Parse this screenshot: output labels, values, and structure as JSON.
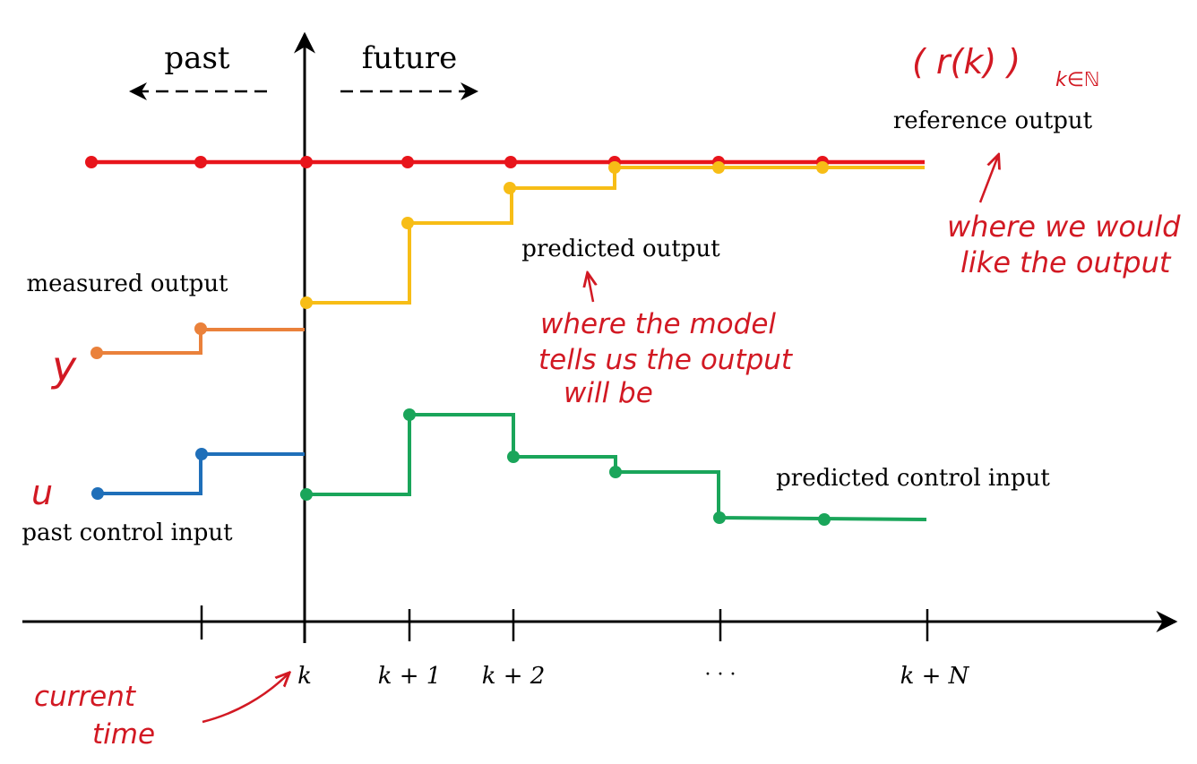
{
  "time_axis": {
    "tick_labels": [
      "k",
      "k + 1",
      "k + 2",
      "· · ·",
      "k + N"
    ],
    "direction_labels": {
      "past": "past",
      "future": "future"
    }
  },
  "labels": {
    "reference_output": "reference output",
    "predicted_output": "predicted output",
    "measured_output": "measured output",
    "predicted_control_input": "predicted control input",
    "past_control_input": "past control input"
  },
  "annotations": {
    "reference_symbol": "( r(k) )",
    "reference_subscript": "k∈ℕ",
    "reference_note": [
      "where we would",
      "like the output"
    ],
    "prediction_note": [
      "where the model",
      "tells us the output",
      "will be"
    ],
    "current_time": [
      "current",
      "time"
    ],
    "y_symbol": "y",
    "u_symbol": "u"
  },
  "colors": {
    "axis": "#000000",
    "reference": "#e8141b",
    "predicted_output": "#f7bd16",
    "measured_output": "#ea813b",
    "predicted_input": "#1aa55a",
    "past_input": "#1f6fb9",
    "handwriting": "#d21923"
  }
}
